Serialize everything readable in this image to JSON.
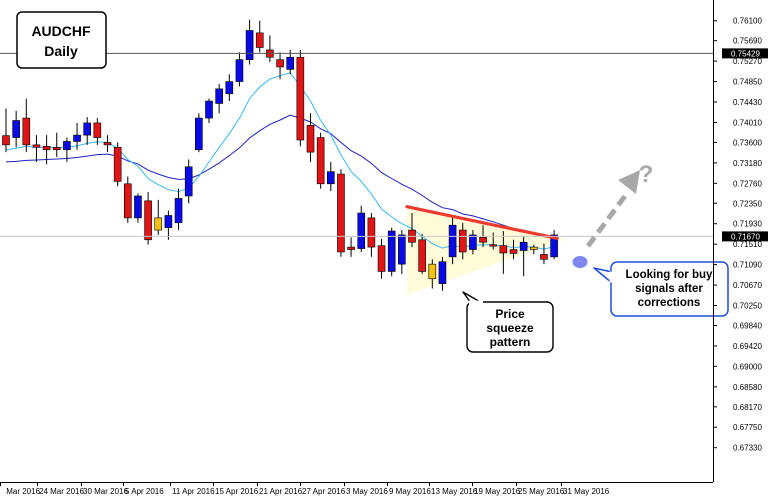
{
  "chart_data": {
    "type": "candlestick",
    "symbol": "AUDCHF",
    "timeframe": "Daily",
    "ylim": [
      0.6718,
      0.7632
    ],
    "current_price": "0.71670",
    "horizontal_line_price": "0.75429",
    "y_ticks": [
      "0.76100",
      "0.75690",
      "0.75270",
      "0.74850",
      "0.74430",
      "0.74010",
      "0.73600",
      "0.73180",
      "0.72760",
      "0.72350",
      "0.71930",
      "0.71510",
      "0.71090",
      "0.70670",
      "0.70250",
      "0.69840",
      "0.69420",
      "0.69000",
      "0.68580",
      "0.68170",
      "0.67750",
      "0.67330"
    ],
    "x_labels": [
      "Mar 2016",
      "24 Mar 2016",
      "30 Mar 2016",
      "5 Apr 2016",
      "11 Apr 2016",
      "15 Apr 2016",
      "21 Apr 2016",
      "27 Apr 2016",
      "3 May 2016",
      "9 May 2016",
      "13 May 2016",
      "19 May 2016",
      "25 May 2016",
      "31 May 2016"
    ],
    "candles": [
      {
        "o": 0.7374,
        "h": 0.743,
        "l": 0.734,
        "c": 0.7355,
        "color": "red"
      },
      {
        "o": 0.737,
        "h": 0.7425,
        "l": 0.735,
        "c": 0.7405,
        "color": "blue"
      },
      {
        "o": 0.741,
        "h": 0.745,
        "l": 0.734,
        "c": 0.7355,
        "color": "red"
      },
      {
        "o": 0.7355,
        "h": 0.7375,
        "l": 0.732,
        "c": 0.735,
        "color": "red"
      },
      {
        "o": 0.7345,
        "h": 0.7375,
        "l": 0.7315,
        "c": 0.7352,
        "color": "red"
      },
      {
        "o": 0.735,
        "h": 0.738,
        "l": 0.733,
        "c": 0.7345,
        "color": "red"
      },
      {
        "o": 0.7345,
        "h": 0.737,
        "l": 0.732,
        "c": 0.7362,
        "color": "blue"
      },
      {
        "o": 0.7362,
        "h": 0.74,
        "l": 0.7345,
        "c": 0.7375,
        "color": "blue"
      },
      {
        "o": 0.7375,
        "h": 0.7412,
        "l": 0.7355,
        "c": 0.74,
        "color": "blue"
      },
      {
        "o": 0.74,
        "h": 0.741,
        "l": 0.7355,
        "c": 0.737,
        "color": "red"
      },
      {
        "o": 0.736,
        "h": 0.7375,
        "l": 0.734,
        "c": 0.7355,
        "color": "red"
      },
      {
        "o": 0.735,
        "h": 0.736,
        "l": 0.727,
        "c": 0.728,
        "color": "red"
      },
      {
        "o": 0.7275,
        "h": 0.729,
        "l": 0.7195,
        "c": 0.7205,
        "color": "red"
      },
      {
        "o": 0.7205,
        "h": 0.7255,
        "l": 0.7195,
        "c": 0.725,
        "color": "blue"
      },
      {
        "o": 0.724,
        "h": 0.7258,
        "l": 0.715,
        "c": 0.716,
        "color": "red"
      },
      {
        "o": 0.718,
        "h": 0.7242,
        "l": 0.717,
        "c": 0.7205,
        "color": "yellow"
      },
      {
        "o": 0.7185,
        "h": 0.722,
        "l": 0.716,
        "c": 0.721,
        "color": "blue"
      },
      {
        "o": 0.7195,
        "h": 0.7265,
        "l": 0.718,
        "c": 0.7245,
        "color": "blue"
      },
      {
        "o": 0.725,
        "h": 0.7325,
        "l": 0.7235,
        "c": 0.731,
        "color": "blue"
      },
      {
        "o": 0.7345,
        "h": 0.742,
        "l": 0.734,
        "c": 0.741,
        "color": "blue"
      },
      {
        "o": 0.741,
        "h": 0.745,
        "l": 0.74,
        "c": 0.7445,
        "color": "blue"
      },
      {
        "o": 0.744,
        "h": 0.748,
        "l": 0.742,
        "c": 0.747,
        "color": "blue"
      },
      {
        "o": 0.746,
        "h": 0.75,
        "l": 0.7445,
        "c": 0.7485,
        "color": "blue"
      },
      {
        "o": 0.7485,
        "h": 0.7545,
        "l": 0.7475,
        "c": 0.753,
        "color": "blue"
      },
      {
        "o": 0.753,
        "h": 0.7612,
        "l": 0.752,
        "c": 0.759,
        "color": "blue"
      },
      {
        "o": 0.7585,
        "h": 0.761,
        "l": 0.7545,
        "c": 0.7555,
        "color": "red"
      },
      {
        "o": 0.755,
        "h": 0.758,
        "l": 0.7525,
        "c": 0.7535,
        "color": "red"
      },
      {
        "o": 0.753,
        "h": 0.7545,
        "l": 0.749,
        "c": 0.7515,
        "color": "red"
      },
      {
        "o": 0.751,
        "h": 0.755,
        "l": 0.75,
        "c": 0.7535,
        "color": "blue"
      },
      {
        "o": 0.7535,
        "h": 0.755,
        "l": 0.7352,
        "c": 0.7365,
        "color": "red"
      },
      {
        "o": 0.7395,
        "h": 0.742,
        "l": 0.732,
        "c": 0.734,
        "color": "red"
      },
      {
        "o": 0.737,
        "h": 0.738,
        "l": 0.7265,
        "c": 0.7275,
        "color": "red"
      },
      {
        "o": 0.7275,
        "h": 0.732,
        "l": 0.726,
        "c": 0.73,
        "color": "blue"
      },
      {
        "o": 0.7295,
        "h": 0.7305,
        "l": 0.7125,
        "c": 0.7135,
        "color": "red"
      },
      {
        "o": 0.714,
        "h": 0.7165,
        "l": 0.7125,
        "c": 0.7145,
        "color": "red"
      },
      {
        "o": 0.7142,
        "h": 0.723,
        "l": 0.7135,
        "c": 0.7215,
        "color": "blue"
      },
      {
        "o": 0.7205,
        "h": 0.7215,
        "l": 0.7125,
        "c": 0.7145,
        "color": "red"
      },
      {
        "o": 0.7148,
        "h": 0.7162,
        "l": 0.708,
        "c": 0.7095,
        "color": "red"
      },
      {
        "o": 0.7095,
        "h": 0.7185,
        "l": 0.7085,
        "c": 0.7178,
        "color": "blue"
      },
      {
        "o": 0.711,
        "h": 0.718,
        "l": 0.709,
        "c": 0.717,
        "color": "blue"
      },
      {
        "o": 0.718,
        "h": 0.7215,
        "l": 0.7145,
        "c": 0.7155,
        "color": "red"
      },
      {
        "o": 0.716,
        "h": 0.7172,
        "l": 0.709,
        "c": 0.7095,
        "color": "red"
      },
      {
        "o": 0.708,
        "h": 0.712,
        "l": 0.706,
        "c": 0.711,
        "color": "yellow"
      },
      {
        "o": 0.707,
        "h": 0.7125,
        "l": 0.7055,
        "c": 0.7115,
        "color": "blue"
      },
      {
        "o": 0.7125,
        "h": 0.721,
        "l": 0.711,
        "c": 0.719,
        "color": "blue"
      },
      {
        "o": 0.718,
        "h": 0.7195,
        "l": 0.712,
        "c": 0.7135,
        "color": "red"
      },
      {
        "o": 0.714,
        "h": 0.718,
        "l": 0.713,
        "c": 0.717,
        "color": "blue"
      },
      {
        "o": 0.7165,
        "h": 0.719,
        "l": 0.7145,
        "c": 0.7155,
        "color": "red"
      },
      {
        "o": 0.715,
        "h": 0.7175,
        "l": 0.714,
        "c": 0.7148,
        "color": "red"
      },
      {
        "o": 0.7148,
        "h": 0.7178,
        "l": 0.709,
        "c": 0.7133,
        "color": "red"
      },
      {
        "o": 0.714,
        "h": 0.716,
        "l": 0.712,
        "c": 0.7132,
        "color": "red"
      },
      {
        "o": 0.7138,
        "h": 0.7168,
        "l": 0.7085,
        "c": 0.7155,
        "color": "blue"
      },
      {
        "o": 0.7145,
        "h": 0.715,
        "l": 0.713,
        "c": 0.714,
        "color": "yellow"
      },
      {
        "o": 0.713,
        "h": 0.7152,
        "l": 0.711,
        "c": 0.712,
        "color": "red"
      },
      {
        "o": 0.7125,
        "h": 0.718,
        "l": 0.712,
        "c": 0.717,
        "color": "blue"
      }
    ],
    "ema_fast": [
      0.7345,
      0.7348,
      0.7352,
      0.735,
      0.735,
      0.7349,
      0.735,
      0.7353,
      0.7358,
      0.7361,
      0.736,
      0.7348,
      0.7325,
      0.7311,
      0.7286,
      0.7273,
      0.7263,
      0.7259,
      0.7266,
      0.729,
      0.732,
      0.735,
      0.7378,
      0.741,
      0.745,
      0.7474,
      0.749,
      0.7497,
      0.7503,
      0.7475,
      0.7445,
      0.7405,
      0.7375,
      0.7335,
      0.73,
      0.728,
      0.7254,
      0.7223,
      0.7207,
      0.7193,
      0.7183,
      0.7167,
      0.7152,
      0.7143,
      0.7148,
      0.7145,
      0.7149,
      0.715,
      0.715,
      0.7147,
      0.7144,
      0.7146,
      0.7145,
      0.7141,
      0.7146
    ],
    "ema_slow": [
      0.732,
      0.7321,
      0.7323,
      0.7324,
      0.7325,
      0.7326,
      0.7327,
      0.7329,
      0.7332,
      0.7335,
      0.7336,
      0.7332,
      0.7322,
      0.7316,
      0.7303,
      0.7295,
      0.7288,
      0.7284,
      0.7285,
      0.7293,
      0.7305,
      0.7318,
      0.7333,
      0.7349,
      0.7369,
      0.7384,
      0.7397,
      0.7406,
      0.7416,
      0.741,
      0.7402,
      0.7388,
      0.7378,
      0.736,
      0.7343,
      0.7332,
      0.7317,
      0.7298,
      0.7286,
      0.7274,
      0.7264,
      0.7251,
      0.7237,
      0.7226,
      0.7222,
      0.7213,
      0.7209,
      0.7203,
      0.7197,
      0.719,
      0.7183,
      0.718,
      0.7175,
      0.7169,
      0.7168
    ],
    "labels": {
      "title_line1": "AUDCHF",
      "title_line2": "Daily",
      "pattern_line1": "Price",
      "pattern_line2": "squeeze",
      "pattern_line3": "pattern",
      "signal_line1": "Looking for buy",
      "signal_line2": "signals after",
      "signal_line3": "corrections",
      "question": "?"
    }
  },
  "colors": {
    "bull": "#0a0ae6",
    "bear": "#e01616",
    "doji": "#f4c20d",
    "ema_fast": "#38b8f2",
    "ema_slow": "#1f1fbf",
    "wedge_fill": "#fefbd8",
    "resistance": "#ee3a2e",
    "arrow": "#a8a8a8",
    "dot": "#7f86f2",
    "price_tag_bg": "#000000",
    "price_tag_text": "#ffffff"
  }
}
